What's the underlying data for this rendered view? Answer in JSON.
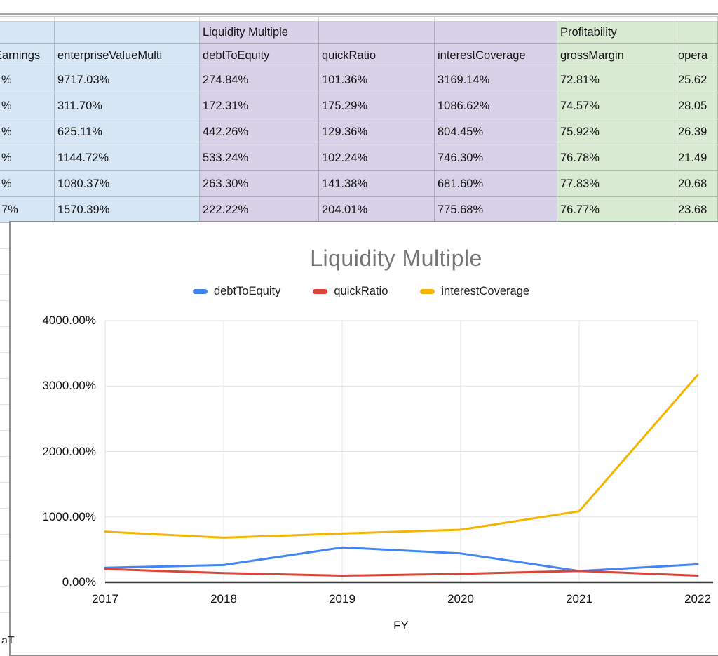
{
  "table": {
    "column_fills": [
      "blue",
      "blue",
      "purple",
      "purple",
      "purple",
      "green",
      "green"
    ],
    "group_row": [
      {
        "text": "",
        "fill": "blue"
      },
      {
        "text": "",
        "fill": "blue"
      },
      {
        "text": "Liquidity Multiple",
        "fill": "purple"
      },
      {
        "text": "",
        "fill": "purple"
      },
      {
        "text": "",
        "fill": "purple"
      },
      {
        "text": "Profitability",
        "fill": "green"
      },
      {
        "text": "",
        "fill": "green"
      }
    ],
    "headers": [
      "Earnings",
      "enterpriseValueMulti",
      "debtToEquity",
      "quickRatio",
      "interestCoverage",
      "grossMargin",
      "opera"
    ],
    "rows": [
      [
        "%",
        "9717.03%",
        "274.84%",
        "101.36%",
        "3169.14%",
        "72.81%",
        "25.62"
      ],
      [
        "%",
        "311.70%",
        "172.31%",
        "175.29%",
        "1086.62%",
        "74.57%",
        "28.05"
      ],
      [
        "%",
        "625.11%",
        "442.26%",
        "129.36%",
        "804.45%",
        "75.92%",
        "26.39"
      ],
      [
        "%",
        "1144.72%",
        "533.24%",
        "102.24%",
        "746.30%",
        "76.78%",
        "21.49"
      ],
      [
        "%",
        "1080.37%",
        "263.30%",
        "141.38%",
        "681.60%",
        "77.83%",
        "20.68"
      ],
      [
        "7%",
        "1570.39%",
        "222.22%",
        "204.01%",
        "775.68%",
        "76.77%",
        "23.68"
      ]
    ]
  },
  "chart_data": {
    "type": "line",
    "title": "Liquidity Multiple",
    "xlabel": "FY",
    "x": [
      "2017",
      "2018",
      "2019",
      "2020",
      "2021",
      "2022"
    ],
    "series": [
      {
        "name": "debtToEquity",
        "color": "#4285f4",
        "values": [
          222.22,
          263.3,
          533.24,
          442.26,
          172.31,
          274.84
        ]
      },
      {
        "name": "quickRatio",
        "color": "#db4437",
        "values": [
          204.01,
          141.38,
          102.24,
          129.36,
          175.29,
          101.36
        ]
      },
      {
        "name": "interestCoverage",
        "color": "#f4b400",
        "values": [
          775.68,
          681.6,
          746.3,
          804.45,
          1086.62,
          3169.14
        ]
      }
    ],
    "ylim": [
      0,
      4000
    ],
    "yticks": [
      "0.00%",
      "1000.00%",
      "2000.00%",
      "3000.00%",
      "4000.00%"
    ],
    "grid": true,
    "legend_position": "top"
  },
  "colors": {
    "fill_blue": "#d7e6f4",
    "fill_purple": "#d8d2e8",
    "fill_green": "#d9ead3",
    "title_gray": "#757575",
    "axis_line": "#3c3c3c",
    "grid_line": "#e3e3e3"
  },
  "footer_fragment": "aT"
}
